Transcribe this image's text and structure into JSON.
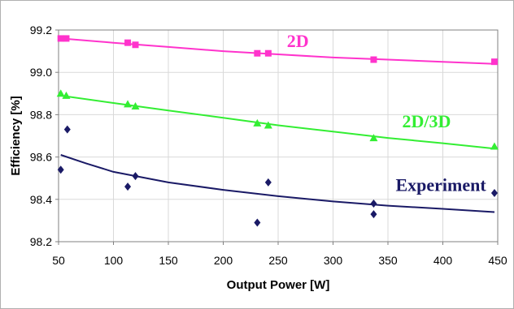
{
  "chart_data": {
    "type": "scatter",
    "xlabel": "Output Power [W]",
    "ylabel": "Efficiency [%]",
    "xlim": [
      50,
      450
    ],
    "ylim": [
      98.2,
      99.2
    ],
    "xticks": [
      50,
      100,
      150,
      200,
      250,
      300,
      350,
      400,
      450
    ],
    "yticks": [
      "98.2",
      "98.4",
      "98.6",
      "98.8",
      "99.0",
      "99.2"
    ],
    "grid": true,
    "series": [
      {
        "name": "2D",
        "color": "#ff33cc",
        "marker": "square",
        "points": [
          {
            "x": 52,
            "y": 99.16
          },
          {
            "x": 57,
            "y": 99.16
          },
          {
            "x": 113,
            "y": 99.14
          },
          {
            "x": 120,
            "y": 99.13
          },
          {
            "x": 231,
            "y": 99.09
          },
          {
            "x": 241,
            "y": 99.09
          },
          {
            "x": 337,
            "y": 99.06
          },
          {
            "x": 447,
            "y": 99.05
          }
        ],
        "trend": [
          {
            "x": 52,
            "y": 99.16
          },
          {
            "x": 100,
            "y": 99.14
          },
          {
            "x": 150,
            "y": 99.12
          },
          {
            "x": 200,
            "y": 99.1
          },
          {
            "x": 250,
            "y": 99.085
          },
          {
            "x": 300,
            "y": 99.07
          },
          {
            "x": 350,
            "y": 99.06
          },
          {
            "x": 400,
            "y": 99.05
          },
          {
            "x": 447,
            "y": 99.04
          }
        ]
      },
      {
        "name": "2D/3D",
        "color": "#33ee33",
        "marker": "triangle",
        "points": [
          {
            "x": 52,
            "y": 98.9
          },
          {
            "x": 57,
            "y": 98.89
          },
          {
            "x": 113,
            "y": 98.85
          },
          {
            "x": 120,
            "y": 98.84
          },
          {
            "x": 231,
            "y": 98.76
          },
          {
            "x": 241,
            "y": 98.75
          },
          {
            "x": 337,
            "y": 98.69
          },
          {
            "x": 447,
            "y": 98.65
          }
        ],
        "trend": [
          {
            "x": 52,
            "y": 98.89
          },
          {
            "x": 100,
            "y": 98.855
          },
          {
            "x": 150,
            "y": 98.82
          },
          {
            "x": 200,
            "y": 98.785
          },
          {
            "x": 250,
            "y": 98.75
          },
          {
            "x": 300,
            "y": 98.72
          },
          {
            "x": 350,
            "y": 98.69
          },
          {
            "x": 400,
            "y": 98.665
          },
          {
            "x": 447,
            "y": 98.64
          }
        ]
      },
      {
        "name": "Experiment",
        "color": "#1a1a66",
        "marker": "diamond",
        "points": [
          {
            "x": 52,
            "y": 98.54
          },
          {
            "x": 58,
            "y": 98.73
          },
          {
            "x": 113,
            "y": 98.46
          },
          {
            "x": 120,
            "y": 98.51
          },
          {
            "x": 231,
            "y": 98.29
          },
          {
            "x": 241,
            "y": 98.48
          },
          {
            "x": 337,
            "y": 98.33
          },
          {
            "x": 337,
            "y": 98.38
          },
          {
            "x": 447,
            "y": 98.43
          }
        ],
        "trend": [
          {
            "x": 52,
            "y": 98.61
          },
          {
            "x": 75,
            "y": 98.57
          },
          {
            "x": 100,
            "y": 98.53
          },
          {
            "x": 150,
            "y": 98.48
          },
          {
            "x": 200,
            "y": 98.445
          },
          {
            "x": 250,
            "y": 98.415
          },
          {
            "x": 300,
            "y": 98.39
          },
          {
            "x": 350,
            "y": 98.37
          },
          {
            "x": 400,
            "y": 98.355
          },
          {
            "x": 447,
            "y": 98.34
          }
        ]
      }
    ],
    "labels": [
      {
        "series": "2D",
        "text": "2D",
        "x": 258,
        "y": 99.12
      },
      {
        "series": "2D/3D",
        "text": "2D/3D",
        "x": 363,
        "y": 98.74
      },
      {
        "series": "Experiment",
        "text": "Experiment",
        "x": 357,
        "y": 98.44
      }
    ]
  }
}
